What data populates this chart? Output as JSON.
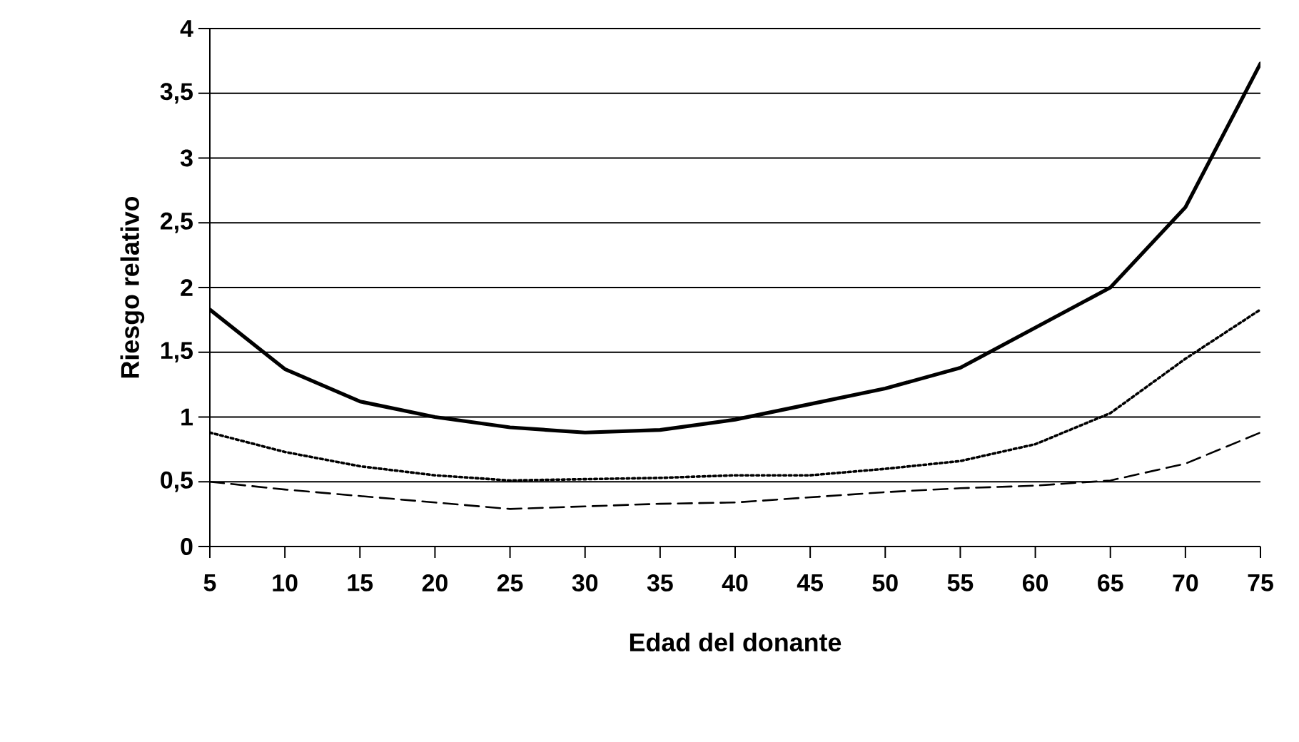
{
  "chart_data": {
    "type": "line",
    "xlabel": "Edad del donante",
    "ylabel": "Riesgo relativo",
    "x": [
      5,
      10,
      15,
      20,
      25,
      30,
      35,
      40,
      45,
      50,
      55,
      60,
      65,
      70,
      75
    ],
    "series": [
      {
        "color": "#000000",
        "line_style": "solid",
        "values": [
          1.83,
          1.37,
          1.12,
          1.0,
          0.92,
          0.88,
          0.9,
          0.98,
          1.1,
          1.22,
          1.38,
          1.69,
          2.0,
          2.62,
          3.73
        ]
      },
      {
        "color": "#000000",
        "line_style": "dotted",
        "values": [
          0.88,
          0.73,
          0.62,
          0.55,
          0.51,
          0.52,
          0.53,
          0.55,
          0.55,
          0.6,
          0.66,
          0.79,
          1.03,
          1.45,
          1.83
        ]
      },
      {
        "color": "#000000",
        "line_style": "dashed",
        "values": [
          0.5,
          0.44,
          0.39,
          0.34,
          0.29,
          0.31,
          0.33,
          0.34,
          0.38,
          0.42,
          0.45,
          0.47,
          0.51,
          0.64,
          0.88
        ]
      }
    ],
    "xlim": [
      5,
      75
    ],
    "xticks": [
      5,
      10,
      15,
      20,
      25,
      30,
      35,
      40,
      45,
      50,
      55,
      60,
      65,
      70,
      75
    ],
    "ylim": [
      0,
      4
    ],
    "yticks": [
      0,
      {
        "value": 0.5,
        "label": "0,5"
      },
      1,
      {
        "value": 1.5,
        "label": "1,5"
      },
      2,
      {
        "value": 2.5,
        "label": "2,5"
      },
      3,
      {
        "value": 3.5,
        "label": "3,5"
      },
      4
    ],
    "grid": "y",
    "marker": "none"
  }
}
